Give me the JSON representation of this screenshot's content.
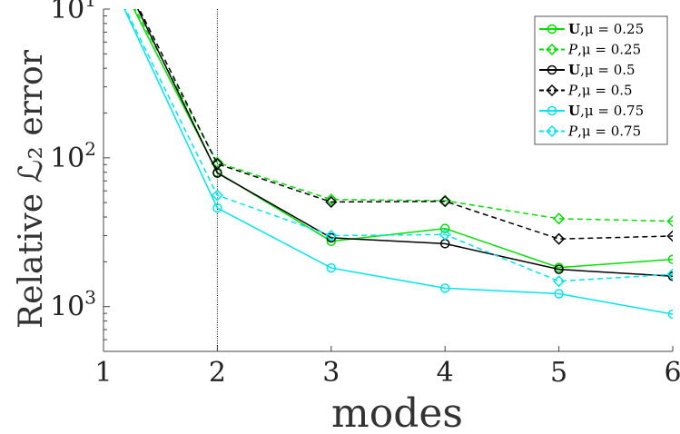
{
  "chart_data": {
    "type": "line",
    "title": "",
    "xlabel": "modes",
    "ylabel": "Relative ℒ₂ error",
    "x": [
      1,
      2,
      3,
      4,
      5,
      6
    ],
    "xlim": [
      1,
      6
    ],
    "ylim": [
      0.0005,
      0.1
    ],
    "y_scale": "log",
    "x_ticks": [
      "1",
      "2",
      "3",
      "4",
      "5",
      "6"
    ],
    "y_ticks": [
      {
        "value": 0.1,
        "base": "10",
        "exp": "1"
      },
      {
        "value": 0.01,
        "base": "10",
        "exp": "2"
      },
      {
        "value": 0.001,
        "base": "10",
        "exp": "3"
      }
    ],
    "vline_x": 2,
    "grid": false,
    "legend_position": "top-right",
    "series": [
      {
        "name": "U,μ = 0.25",
        "legend_bold": "U",
        "legend_rest": ",μ = 0.25",
        "color": "#00e000",
        "dash": "solid",
        "marker": "circle",
        "values": [
          0.25,
          0.008,
          0.00275,
          0.00335,
          0.00183,
          0.00208
        ]
      },
      {
        "name": "P,μ = 0.25",
        "legend_bold": "P",
        "legend_rest": ",μ = 0.25",
        "color": "#00e000",
        "dash": "dashed",
        "marker": "diamond",
        "values": [
          0.25,
          0.0093,
          0.00525,
          0.00515,
          0.0039,
          0.00375
        ]
      },
      {
        "name": "U,μ = 0.5",
        "legend_bold": "U",
        "legend_rest": ",μ = 0.5",
        "color": "#000000",
        "dash": "solid",
        "marker": "circle",
        "values": [
          0.3,
          0.0079,
          0.0029,
          0.00265,
          0.00178,
          0.0016
        ]
      },
      {
        "name": "P,μ = 0.5",
        "legend_bold": "P",
        "legend_rest": ",μ = 0.5",
        "color": "#000000",
        "dash": "dashed",
        "marker": "diamond",
        "values": [
          0.3,
          0.0091,
          0.00505,
          0.0051,
          0.00285,
          0.00298
        ]
      },
      {
        "name": "U,μ = 0.75",
        "legend_bold": "U",
        "legend_rest": ",μ = 0.75",
        "color": "#00e5ee",
        "dash": "solid",
        "marker": "circle",
        "values": [
          0.2,
          0.0046,
          0.00182,
          0.00133,
          0.00122,
          0.00089
        ]
      },
      {
        "name": "P,μ = 0.75",
        "legend_bold": "P",
        "legend_rest": ",μ = 0.75",
        "color": "#00e5ee",
        "dash": "dashed",
        "marker": "diamond",
        "values": [
          0.2,
          0.0056,
          0.003,
          0.00305,
          0.00148,
          0.00165
        ]
      }
    ]
  }
}
